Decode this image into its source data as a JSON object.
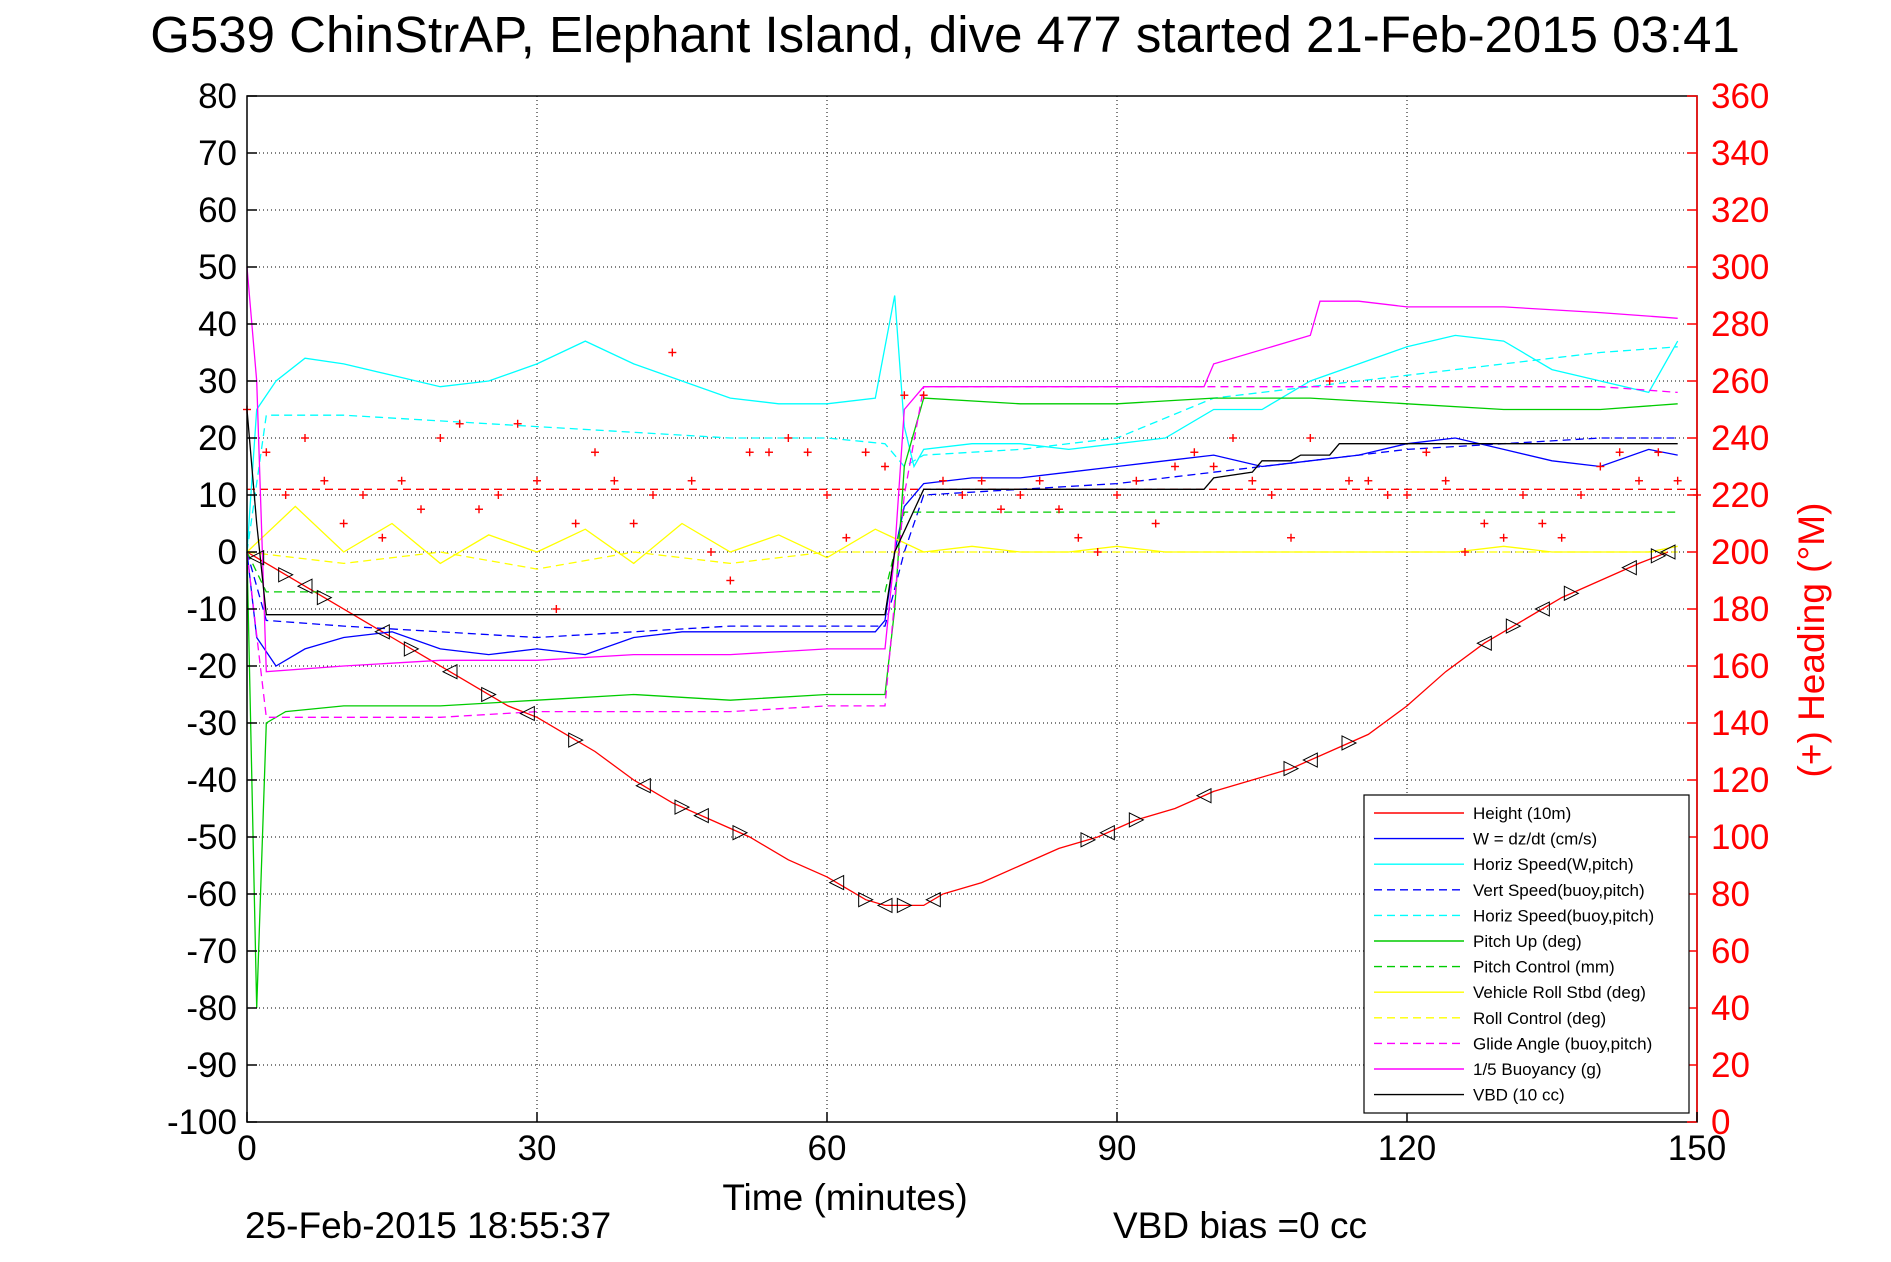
{
  "chart_data": {
    "type": "line",
    "title": "G539 ChinStrAP, Elephant Island, dive 477 started 21-Feb-2015 03:41",
    "xlabel": "Time (minutes)",
    "ylabel_right": "(+) Heading (°M)",
    "footer_left": "25-Feb-2015 18:55:37",
    "footer_right": "VBD bias =0 cc",
    "xlim": [
      0,
      150
    ],
    "ylim": [
      -100,
      80
    ],
    "ylim_right": [
      0,
      360
    ],
    "x_ticks": [
      0,
      30,
      60,
      90,
      120,
      150
    ],
    "y_ticks": [
      80,
      70,
      60,
      50,
      40,
      30,
      20,
      10,
      0,
      -10,
      -20,
      -30,
      -40,
      -50,
      -60,
      -70,
      -80,
      -90,
      -100
    ],
    "y_ticks_right": [
      360,
      340,
      320,
      300,
      280,
      260,
      240,
      220,
      200,
      180,
      160,
      140,
      120,
      100,
      80,
      60,
      40,
      20,
      0
    ],
    "grid": true,
    "legend_position": "bottom-right",
    "series": [
      {
        "name": "Height (10m)",
        "color": "#ff0000",
        "style": "solid",
        "x": [
          0,
          3,
          6,
          9,
          12,
          15,
          18,
          21,
          24,
          27,
          30,
          33,
          36,
          40,
          44,
          48,
          52,
          56,
          60,
          64,
          66,
          68,
          70,
          72,
          76,
          80,
          84,
          88,
          92,
          96,
          100,
          104,
          108,
          112,
          116,
          120,
          124,
          128,
          132,
          136,
          140,
          144,
          147
        ],
        "y": [
          0,
          -3,
          -6,
          -9,
          -12,
          -15,
          -18,
          -21,
          -24,
          -27,
          -29,
          -32,
          -35,
          -40,
          -44,
          -47,
          -50,
          -54,
          -57,
          -61,
          -62,
          -62,
          -62,
          -60,
          -58,
          -55,
          -52,
          -50,
          -47,
          -45,
          -42,
          -40,
          -38,
          -35,
          -32,
          -27,
          -21,
          -16,
          -12,
          -8,
          -5,
          -2,
          0
        ]
      },
      {
        "name": "W = dz/dt (cm/s)",
        "color": "#0000ff",
        "style": "solid",
        "x": [
          0,
          1,
          3,
          6,
          10,
          15,
          20,
          25,
          30,
          35,
          40,
          45,
          50,
          55,
          60,
          65,
          66,
          67,
          68,
          70,
          75,
          80,
          85,
          90,
          95,
          100,
          105,
          110,
          115,
          120,
          125,
          130,
          135,
          140,
          145,
          148
        ],
        "y": [
          0,
          -15,
          -20,
          -17,
          -15,
          -14,
          -17,
          -18,
          -17,
          -18,
          -15,
          -14,
          -14,
          -14,
          -14,
          -14,
          -12,
          0,
          8,
          12,
          13,
          13,
          14,
          15,
          16,
          17,
          15,
          16,
          17,
          19,
          20,
          18,
          16,
          15,
          18,
          17
        ]
      },
      {
        "name": "Horiz Speed(W,pitch)",
        "color": "#00ffff",
        "style": "solid",
        "x": [
          0,
          1,
          3,
          6,
          10,
          15,
          20,
          25,
          30,
          35,
          40,
          45,
          50,
          55,
          60,
          65,
          67,
          68,
          69,
          70,
          75,
          80,
          85,
          90,
          95,
          100,
          105,
          110,
          115,
          120,
          125,
          130,
          135,
          140,
          145,
          148
        ],
        "y": [
          0,
          25,
          30,
          34,
          33,
          31,
          29,
          30,
          33,
          37,
          33,
          30,
          27,
          26,
          26,
          27,
          45,
          22,
          15,
          18,
          19,
          19,
          18,
          19,
          20,
          25,
          25,
          30,
          33,
          36,
          38,
          37,
          32,
          30,
          28,
          37
        ]
      },
      {
        "name": "Vert Speed(buoy,pitch)",
        "color": "#0000ff",
        "style": "dashed",
        "x": [
          0,
          2,
          10,
          20,
          30,
          40,
          50,
          60,
          66,
          68,
          70,
          80,
          90,
          100,
          110,
          120,
          130,
          140,
          148
        ],
        "y": [
          0,
          -12,
          -13,
          -14,
          -15,
          -14,
          -13,
          -13,
          -13,
          0,
          10,
          11,
          12,
          14,
          16,
          18,
          19,
          20,
          20
        ]
      },
      {
        "name": "Horiz Speed(buoy,pitch)",
        "color": "#00ffff",
        "style": "dashed",
        "x": [
          0,
          2,
          10,
          20,
          30,
          40,
          50,
          60,
          66,
          68,
          70,
          80,
          90,
          100,
          110,
          120,
          130,
          140,
          148
        ],
        "y": [
          0,
          24,
          24,
          23,
          22,
          21,
          20,
          20,
          19,
          15,
          17,
          18,
          20,
          27,
          29,
          31,
          33,
          35,
          36
        ]
      },
      {
        "name": "Pitch Up (deg)",
        "color": "#00cc00",
        "style": "solid",
        "x": [
          0,
          1,
          2,
          4,
          10,
          20,
          30,
          40,
          50,
          60,
          66,
          67,
          68,
          70,
          80,
          90,
          100,
          110,
          120,
          130,
          140,
          148
        ],
        "y": [
          0,
          -80,
          -30,
          -28,
          -27,
          -27,
          -26,
          -25,
          -26,
          -25,
          -25,
          -10,
          15,
          27,
          26,
          26,
          27,
          27,
          26,
          25,
          25,
          26
        ]
      },
      {
        "name": "Pitch Control (mm)",
        "color": "#00cc00",
        "style": "dashed",
        "x": [
          0,
          2,
          66,
          68,
          148
        ],
        "y": [
          0,
          -7,
          -7,
          7,
          7
        ]
      },
      {
        "name": "Vehicle Roll Stbd (deg)",
        "color": "#ffff00",
        "style": "solid",
        "x": [
          0,
          5,
          10,
          15,
          20,
          25,
          30,
          35,
          40,
          45,
          50,
          55,
          60,
          65,
          70,
          75,
          80,
          85,
          90,
          95,
          100,
          105,
          110,
          115,
          120,
          125,
          130,
          135,
          140,
          145,
          148
        ],
        "y": [
          0,
          8,
          0,
          5,
          -2,
          3,
          0,
          4,
          -2,
          5,
          0,
          3,
          -1,
          4,
          0,
          1,
          0,
          0,
          1,
          0,
          0,
          0,
          0,
          0,
          0,
          0,
          1,
          0,
          0,
          0,
          1
        ]
      },
      {
        "name": "Roll Control (deg)",
        "color": "#ffff00",
        "style": "dashed",
        "x": [
          0,
          10,
          20,
          30,
          40,
          50,
          60,
          70,
          80,
          90,
          100,
          110,
          120,
          130,
          140,
          148
        ],
        "y": [
          0,
          -2,
          0,
          -3,
          0,
          -2,
          0,
          0,
          0,
          0,
          0,
          0,
          0,
          0,
          0,
          0
        ]
      },
      {
        "name": "Glide Angle (buoy,pitch)",
        "color": "#ff00ff",
        "style": "dashed",
        "x": [
          0,
          2,
          10,
          20,
          30,
          40,
          50,
          60,
          66,
          68,
          70,
          80,
          90,
          100,
          110,
          120,
          130,
          140,
          148
        ],
        "y": [
          0,
          -29,
          -29,
          -29,
          -28,
          -28,
          -28,
          -27,
          -27,
          10,
          29,
          29,
          29,
          29,
          29,
          29,
          29,
          29,
          28
        ]
      },
      {
        "name": "1/5 Buoyancy (g)",
        "color": "#ff00ff",
        "style": "solid",
        "x": [
          0,
          1,
          2,
          10,
          20,
          30,
          40,
          50,
          60,
          66,
          67,
          68,
          70,
          80,
          90,
          99,
          100,
          110,
          111,
          115,
          120,
          130,
          140,
          148
        ],
        "y": [
          50,
          30,
          -21,
          -20,
          -19,
          -19,
          -18,
          -18,
          -17,
          -17,
          0,
          25,
          29,
          29,
          29,
          29,
          33,
          38,
          44,
          44,
          43,
          43,
          42,
          41
        ]
      },
      {
        "name": "VBD (10 cc)",
        "color": "#000000",
        "style": "solid",
        "x": [
          0,
          1,
          2,
          66,
          67,
          70,
          72,
          90,
          99,
          100,
          104,
          105,
          108,
          109,
          112,
          113,
          148
        ],
        "y": [
          25,
          5,
          -11,
          -11,
          0,
          11,
          11,
          11,
          11,
          13,
          14,
          16,
          16,
          17,
          17,
          19,
          19
        ]
      }
    ],
    "heading_series": {
      "name": "Heading (°M)",
      "axis": "right",
      "color": "#ff0000",
      "marker": "+",
      "mean_line": 222,
      "x": [
        0,
        2,
        4,
        6,
        8,
        10,
        12,
        14,
        16,
        18,
        20,
        22,
        24,
        26,
        28,
        30,
        32,
        34,
        36,
        38,
        40,
        42,
        44,
        46,
        48,
        50,
        52,
        54,
        56,
        58,
        60,
        62,
        64,
        66,
        68,
        70,
        72,
        74,
        76,
        78,
        80,
        82,
        84,
        86,
        88,
        90,
        92,
        94,
        96,
        98,
        100,
        102,
        104,
        106,
        108,
        110,
        112,
        114,
        116,
        118,
        120,
        122,
        124,
        126,
        128,
        130,
        132,
        134,
        136,
        138,
        140,
        142,
        144,
        146,
        148,
        150
      ],
      "y": [
        250,
        235,
        220,
        240,
        225,
        210,
        220,
        205,
        225,
        215,
        240,
        245,
        215,
        220,
        245,
        225,
        180,
        210,
        235,
        225,
        210,
        220,
        270,
        225,
        200,
        190,
        235,
        235,
        240,
        235,
        220,
        205,
        235,
        230,
        255,
        255,
        225,
        220,
        225,
        215,
        220,
        225,
        215,
        205,
        200,
        220,
        225,
        210,
        230,
        235,
        230,
        240,
        225,
        220,
        205,
        240,
        260,
        225,
        225,
        220,
        220,
        235,
        225,
        200,
        210,
        205,
        220,
        210,
        205,
        220,
        230,
        235,
        225,
        235,
        225,
        220
      ]
    },
    "triangle_markers": {
      "series": "Height (10m)",
      "x": [
        1,
        4,
        6,
        8,
        14,
        17,
        21,
        25,
        29,
        34,
        41,
        45,
        47,
        51,
        61,
        64,
        66,
        68,
        71,
        87,
        89,
        92,
        99,
        108,
        110,
        114,
        128,
        131,
        134,
        137,
        143,
        146,
        147
      ]
    },
    "legend_entries": [
      "Height (10m)",
      "W = dz/dt (cm/s)",
      "Horiz Speed(W,pitch)",
      "Vert Speed(buoy,pitch)",
      "Horiz Speed(buoy,pitch)",
      "Pitch Up (deg)",
      "Pitch Control (mm)",
      "Vehicle Roll Stbd (deg)",
      "Roll Control (deg)",
      "Glide Angle (buoy,pitch)",
      "1/5 Buoyancy (g)",
      "VBD (10 cc)"
    ]
  }
}
